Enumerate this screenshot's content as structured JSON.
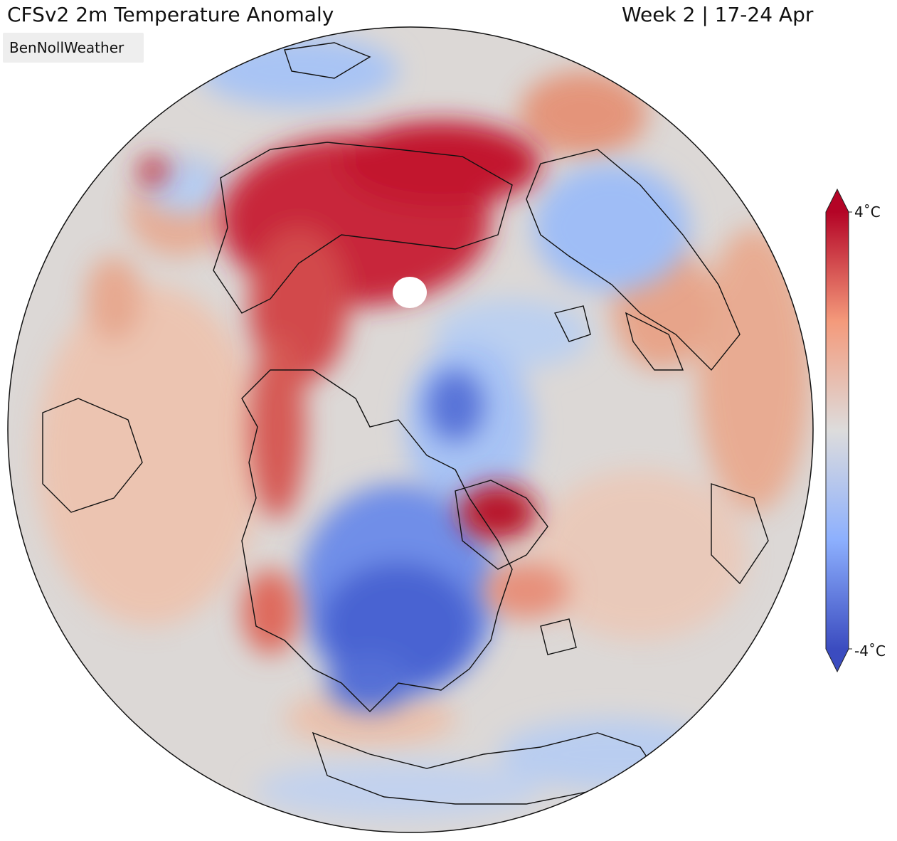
{
  "header": {
    "title": "CFSv2 2m Temperature Anomaly",
    "period": "Week 2 | 17-24 Apr"
  },
  "credit": "BenNollWeather",
  "colorbar": {
    "max_label": "4˚C",
    "min_label": "-4˚C",
    "max_value": 4,
    "min_value": -4,
    "colors": {
      "warm_extreme": "#b40426",
      "warm": "#e7745b",
      "neutral": "#dddcdc",
      "cool": "#8db0fe",
      "cool_extreme": "#3b4cc0"
    }
  },
  "map": {
    "projection": "orthographic",
    "colormap": "coolwarm"
  }
}
